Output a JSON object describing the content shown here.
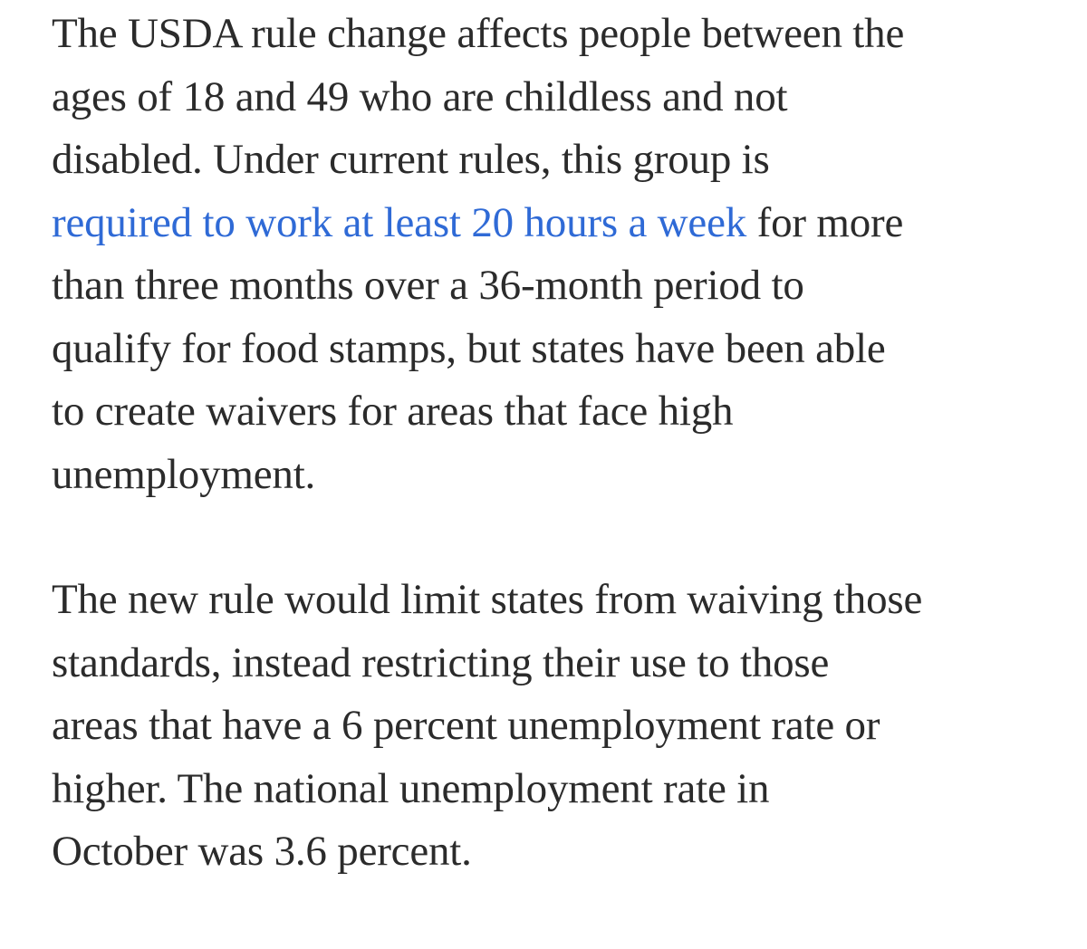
{
  "article": {
    "paragraph_1": {
      "line_1": "The USDA rule change affects people between the",
      "line_2": "ages of 18 and 49 who are childless and not",
      "line_3": "disabled. Under current rules, this group is",
      "line_4_link": "required to work at least 20 hours a week",
      "line_4_rest": " for more",
      "line_5": "than three months over a 36-month period to",
      "line_6": "qualify for food stamps, but states have been able",
      "line_7": "to create waivers for areas that face high",
      "line_8": "unemployment."
    },
    "paragraph_2": {
      "line_1": "The new rule would limit states from waiving those",
      "line_2": "standards, instead restricting their use to those",
      "line_3": "areas that have a 6 percent unemployment rate or",
      "line_4": "higher. The national unemployment rate in",
      "line_5": "October was 3.6 percent."
    },
    "colors": {
      "text": "#2b2b2b",
      "link": "#2f6ad6",
      "background": "#ffffff"
    }
  }
}
